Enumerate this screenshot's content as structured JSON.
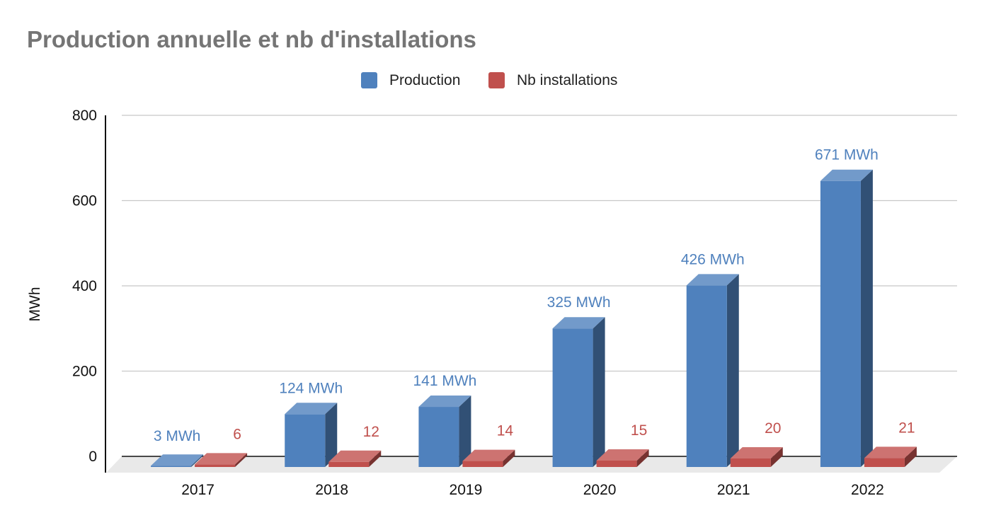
{
  "chart_data": {
    "type": "bar",
    "title": "Production annuelle et  nb d'installations",
    "ylabel": "MWh",
    "xlabel": "",
    "categories": [
      "2017",
      "2018",
      "2019",
      "2020",
      "2021",
      "2022"
    ],
    "ylim": [
      0,
      800
    ],
    "yticks": [
      "0",
      "200",
      "400",
      "600",
      "800"
    ],
    "series": [
      {
        "name": "Production",
        "values": [
          3,
          124,
          141,
          325,
          426,
          671
        ],
        "labels": [
          "3 MWh",
          "124 MWh",
          "141 MWh",
          "325 MWh",
          "426 MWh",
          "671 MWh"
        ],
        "color": "#4f81bd",
        "label_color": "#4f81bd"
      },
      {
        "name": "Nb installations",
        "values": [
          6,
          12,
          14,
          15,
          20,
          21
        ],
        "labels": [
          "6",
          "12",
          "14",
          "15",
          "20",
          "21"
        ],
        "color": "#c0504d",
        "label_color": "#c0504d"
      }
    ],
    "legend_position": "top-center",
    "grid": true,
    "style": "3d-column",
    "title_color": "#757575"
  }
}
